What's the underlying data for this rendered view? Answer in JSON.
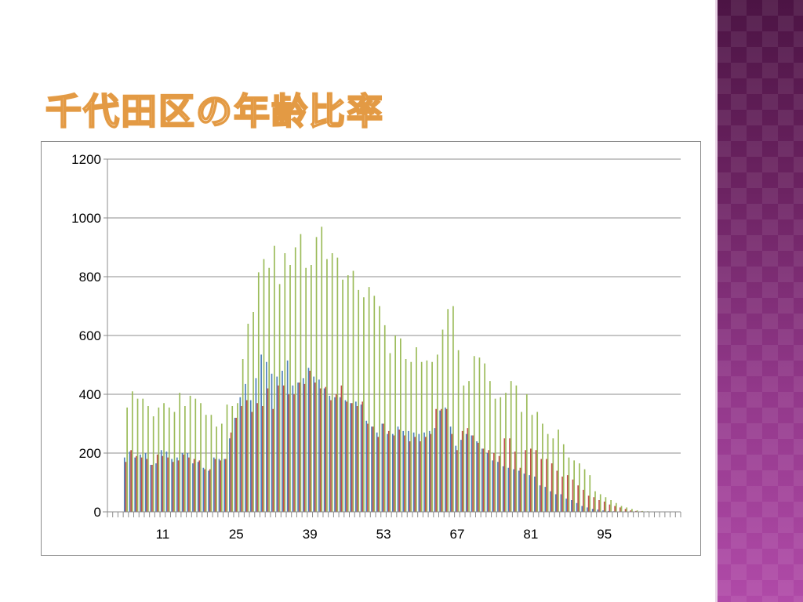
{
  "slide": {
    "title": "千代田区の年齢比率"
  },
  "colors": {
    "series_blue": "#4f81bd",
    "series_red": "#c0504d",
    "series_green": "#9bbb59",
    "gridline": "#8c8c8c",
    "side_band": "#7a2a70"
  },
  "chart_data": {
    "type": "bar",
    "title": "",
    "xlabel": "",
    "ylabel": "",
    "ylim": [
      0,
      1200
    ],
    "yticks": [
      0,
      200,
      400,
      600,
      800,
      1000,
      1200
    ],
    "xtick_labels": [
      "11",
      "25",
      "39",
      "53",
      "67",
      "81",
      "95"
    ],
    "grid": true,
    "legend": "none",
    "categories": [
      1,
      2,
      3,
      4,
      5,
      6,
      7,
      8,
      9,
      10,
      11,
      12,
      13,
      14,
      15,
      16,
      17,
      18,
      19,
      20,
      21,
      22,
      23,
      24,
      25,
      26,
      27,
      28,
      29,
      30,
      31,
      32,
      33,
      34,
      35,
      36,
      37,
      38,
      39,
      40,
      41,
      42,
      43,
      44,
      45,
      46,
      47,
      48,
      49,
      50,
      51,
      52,
      53,
      54,
      55,
      56,
      57,
      58,
      59,
      60,
      61,
      62,
      63,
      64,
      65,
      66,
      67,
      68,
      69,
      70,
      71,
      72,
      73,
      74,
      75,
      76,
      77,
      78,
      79,
      80,
      81,
      82,
      83,
      84,
      85,
      86,
      87,
      88,
      89,
      90,
      91,
      92,
      93,
      94,
      95,
      96,
      97,
      98,
      99,
      100,
      101,
      102,
      103,
      104,
      105,
      106,
      107,
      108,
      109
    ],
    "series": [
      {
        "values": [
          0,
          0,
          0,
          185,
          205,
          185,
          195,
          200,
          160,
          165,
          210,
          205,
          180,
          185,
          200,
          200,
          165,
          170,
          150,
          140,
          185,
          180,
          180,
          250,
          320,
          390,
          435,
          380,
          455,
          535,
          510,
          470,
          460,
          480,
          515,
          430,
          440,
          455,
          490,
          460,
          450,
          420,
          395,
          390,
          390,
          380,
          370,
          375,
          365,
          310,
          290,
          270,
          300,
          265,
          265,
          290,
          275,
          275,
          270,
          265,
          270,
          275,
          285,
          345,
          355,
          290,
          225,
          245,
          265,
          260,
          240,
          215,
          200,
          175,
          170,
          155,
          150,
          145,
          140,
          130,
          125,
          120,
          90,
          85,
          70,
          60,
          60,
          45,
          40,
          30,
          20,
          15,
          10,
          8,
          5,
          3,
          2,
          1,
          0,
          0,
          0,
          0,
          0,
          0,
          0,
          0,
          0,
          0,
          0
        ],
        "color": "#4f81bd"
      },
      {
        "values": [
          0,
          0,
          0,
          170,
          210,
          190,
          185,
          180,
          160,
          195,
          190,
          185,
          170,
          175,
          195,
          185,
          180,
          175,
          145,
          145,
          180,
          175,
          180,
          270,
          320,
          360,
          380,
          340,
          370,
          360,
          420,
          350,
          430,
          430,
          400,
          400,
          440,
          435,
          480,
          440,
          420,
          425,
          380,
          400,
          430,
          375,
          370,
          360,
          375,
          300,
          290,
          255,
          300,
          275,
          260,
          280,
          260,
          240,
          255,
          240,
          255,
          265,
          350,
          350,
          350,
          265,
          210,
          275,
          285,
          260,
          235,
          215,
          210,
          200,
          190,
          250,
          250,
          205,
          150,
          210,
          215,
          210,
          180,
          180,
          165,
          140,
          120,
          125,
          110,
          90,
          75,
          55,
          50,
          40,
          35,
          25,
          20,
          15,
          10,
          5,
          3,
          2,
          1,
          0,
          0,
          0,
          0,
          0,
          0
        ],
        "color": "#c0504d"
      },
      {
        "values": [
          0,
          0,
          0,
          355,
          410,
          385,
          385,
          360,
          325,
          355,
          370,
          355,
          340,
          405,
          360,
          395,
          385,
          370,
          330,
          330,
          290,
          300,
          365,
          360,
          370,
          520,
          640,
          680,
          815,
          860,
          830,
          905,
          775,
          880,
          840,
          900,
          945,
          830,
          840,
          935,
          970,
          860,
          880,
          865,
          790,
          805,
          820,
          755,
          730,
          765,
          735,
          700,
          635,
          540,
          600,
          590,
          520,
          510,
          560,
          510,
          515,
          510,
          535,
          620,
          690,
          700,
          550,
          430,
          445,
          530,
          525,
          505,
          445,
          385,
          390,
          405,
          445,
          430,
          340,
          400,
          330,
          340,
          300,
          265,
          250,
          280,
          230,
          185,
          175,
          165,
          145,
          125,
          70,
          60,
          50,
          40,
          30,
          20,
          15,
          10,
          5,
          3,
          2,
          1,
          0,
          0,
          0,
          0,
          0
        ],
        "color": "#9bbb59"
      }
    ]
  }
}
